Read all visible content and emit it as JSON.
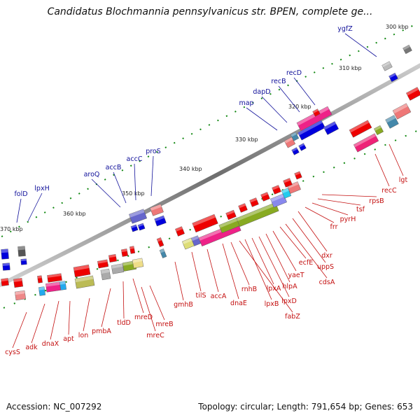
{
  "title": "Candidatus Blochmannia pennsylvanicus str. BPEN, complete ge...",
  "footer": {
    "accession": "Accession: NC_007292",
    "summary": "Topology: circular; Length: 791,654 bp; Genes: 653"
  },
  "colors": {
    "forward_gene": "#0000dd",
    "reverse_gene": "#ee0000",
    "forward_label": "#10109a",
    "reverse_label": "#c41010",
    "backbone": "#8a8a8a",
    "tick": "#118811"
  },
  "ticks": [
    "300 kbp",
    "310 kbp",
    "320 kbp",
    "330 kbp",
    "340 kbp",
    "350 kbp",
    "360 kbp",
    "370 kbp"
  ],
  "top_labels": [
    "ygfZ",
    "recD",
    "recB",
    "dapD",
    "map",
    "proS",
    "accC",
    "accB",
    "aroQ",
    "lpxH",
    "folD"
  ],
  "bottom_labels": [
    "lgt",
    "recC",
    "rpsB",
    "tsf",
    "pyrH",
    "frr",
    "dxr",
    "uppS",
    "cdsA",
    "ecfE",
    "yaeT",
    "hlpA",
    "lpxD",
    "lpxA",
    "lpxB",
    "fabZ",
    "rnhB",
    "dnaE",
    "accA",
    "tilS",
    "gmhB",
    "mreB",
    "mreC",
    "mreD",
    "tldD",
    "pmbA",
    "lon",
    "apt",
    "dnaX",
    "adk",
    "cysS"
  ]
}
